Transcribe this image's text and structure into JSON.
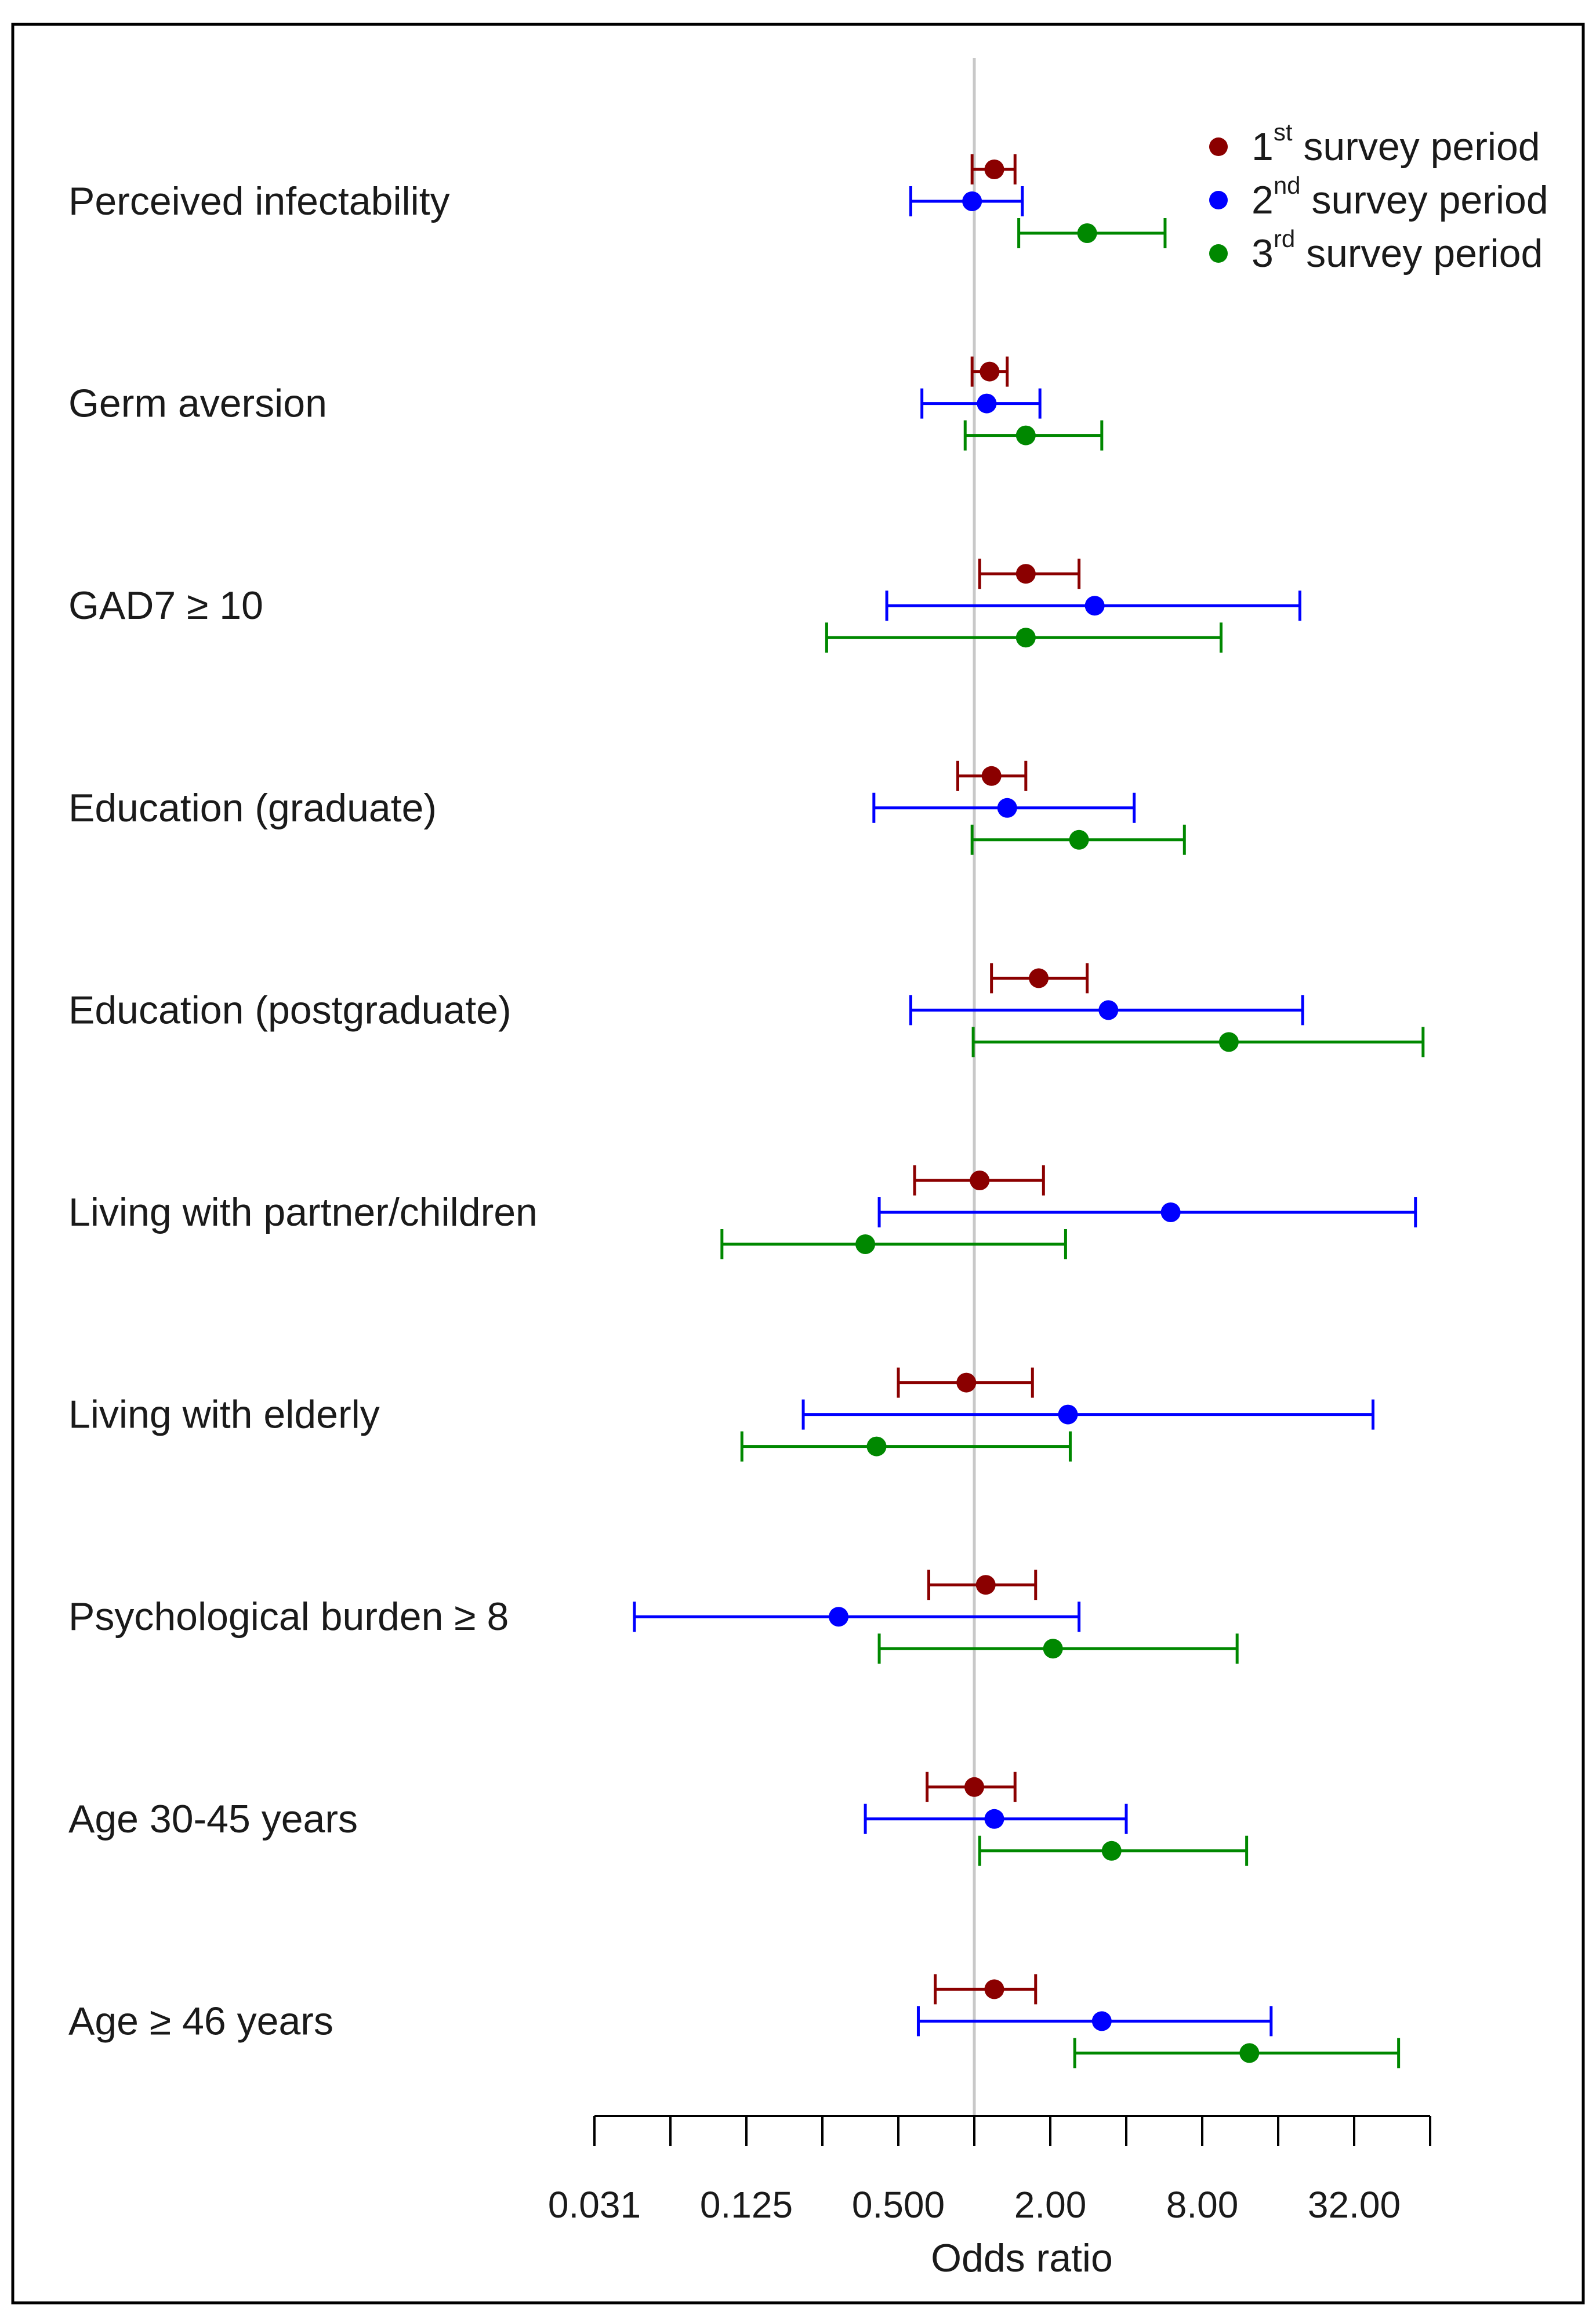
{
  "chart_data": {
    "type": "forest",
    "xlabel": "Odds ratio",
    "x_scale": "log2",
    "xlim": [
      0.03125,
      64
    ],
    "reference_value": 1,
    "x_ticks": [
      {
        "value": 0.03125,
        "label": "0.031"
      },
      {
        "value": 0.0625,
        "label": ""
      },
      {
        "value": 0.125,
        "label": "0.125"
      },
      {
        "value": 0.25,
        "label": ""
      },
      {
        "value": 0.5,
        "label": "0.500"
      },
      {
        "value": 1,
        "label": ""
      },
      {
        "value": 2,
        "label": "2.00"
      },
      {
        "value": 4,
        "label": ""
      },
      {
        "value": 8,
        "label": "8.00"
      },
      {
        "value": 16,
        "label": ""
      },
      {
        "value": 32,
        "label": "32.00"
      },
      {
        "value": 64,
        "label": ""
      }
    ],
    "legend": [
      {
        "num": "1",
        "sup": "st",
        "text": " survey period",
        "color": "#8b0000"
      },
      {
        "num": "2",
        "sup": "nd",
        "text": " survey period",
        "color": "#0000ff"
      },
      {
        "num": "3",
        "sup": "rd",
        "text": " survey period",
        "color": "#008800"
      }
    ],
    "series_colors": [
      "#8b0000",
      "#0000ff",
      "#008800"
    ],
    "rows": [
      {
        "label": "Perceived infectability",
        "series": [
          {
            "or": 1.2,
            "lo": 0.98,
            "hi": 1.45
          },
          {
            "or": 0.98,
            "lo": 0.56,
            "hi": 1.55
          },
          {
            "or": 2.8,
            "lo": 1.5,
            "hi": 5.7
          }
        ]
      },
      {
        "label": "Germ aversion",
        "series": [
          {
            "or": 1.15,
            "lo": 0.98,
            "hi": 1.35
          },
          {
            "or": 1.12,
            "lo": 0.62,
            "hi": 1.82
          },
          {
            "or": 1.6,
            "lo": 0.92,
            "hi": 3.2
          }
        ]
      },
      {
        "label": "GAD7 ≥ 10",
        "series": [
          {
            "or": 1.6,
            "lo": 1.05,
            "hi": 2.6
          },
          {
            "or": 3.0,
            "lo": 0.45,
            "hi": 19.5
          },
          {
            "or": 1.6,
            "lo": 0.26,
            "hi": 9.5
          }
        ]
      },
      {
        "label": "Education (graduate)",
        "series": [
          {
            "or": 1.17,
            "lo": 0.86,
            "hi": 1.6
          },
          {
            "or": 1.35,
            "lo": 0.4,
            "hi": 4.3
          },
          {
            "or": 2.6,
            "lo": 0.98,
            "hi": 6.8
          }
        ]
      },
      {
        "label": "Education (postgraduate)",
        "series": [
          {
            "or": 1.8,
            "lo": 1.17,
            "hi": 2.8
          },
          {
            "or": 3.4,
            "lo": 0.56,
            "hi": 20.0
          },
          {
            "or": 10.2,
            "lo": 0.99,
            "hi": 60.0
          }
        ]
      },
      {
        "label": "Living with partner/children",
        "series": [
          {
            "or": 1.05,
            "lo": 0.58,
            "hi": 1.88
          },
          {
            "or": 6.0,
            "lo": 0.42,
            "hi": 56.0
          },
          {
            "or": 0.37,
            "lo": 0.1,
            "hi": 2.3
          }
        ]
      },
      {
        "label": "Living with elderly",
        "series": [
          {
            "or": 0.93,
            "lo": 0.5,
            "hi": 1.7
          },
          {
            "or": 2.35,
            "lo": 0.21,
            "hi": 38.0
          },
          {
            "or": 0.41,
            "lo": 0.12,
            "hi": 2.4
          }
        ]
      },
      {
        "label": "Psychological burden ≥ 8",
        "series": [
          {
            "or": 1.11,
            "lo": 0.66,
            "hi": 1.75
          },
          {
            "or": 0.29,
            "lo": 0.045,
            "hi": 2.6
          },
          {
            "or": 2.05,
            "lo": 0.42,
            "hi": 11.0
          }
        ]
      },
      {
        "label": "Age 30-45 years",
        "series": [
          {
            "or": 1.0,
            "lo": 0.65,
            "hi": 1.45
          },
          {
            "or": 1.2,
            "lo": 0.37,
            "hi": 4.0
          },
          {
            "or": 3.5,
            "lo": 1.05,
            "hi": 12.0
          }
        ]
      },
      {
        "label": "Age ≥ 46 years",
        "series": [
          {
            "or": 1.2,
            "lo": 0.7,
            "hi": 1.75
          },
          {
            "or": 3.2,
            "lo": 0.6,
            "hi": 15.0
          },
          {
            "or": 12.3,
            "lo": 2.5,
            "hi": 48.0
          }
        ]
      }
    ]
  }
}
